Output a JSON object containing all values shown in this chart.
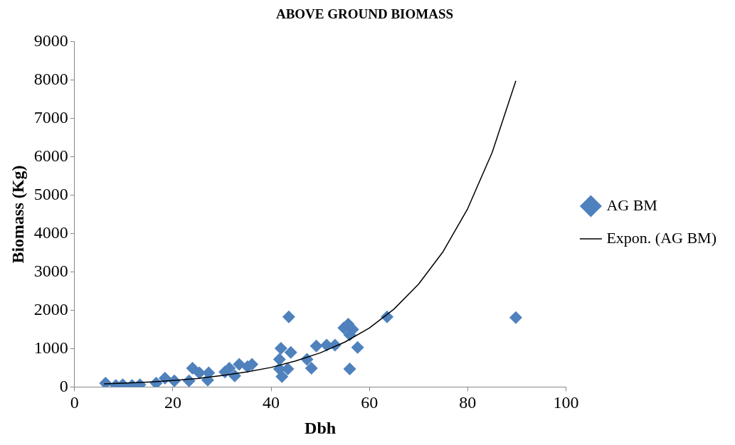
{
  "chart_data": {
    "type": "scatter",
    "title": "ABOVE GROUND BIOMASS",
    "xlabel": "Dbh",
    "ylabel": "Biomass (Kg)",
    "xlim": [
      0,
      100
    ],
    "xticks": [
      0,
      20,
      40,
      60,
      80,
      100
    ],
    "ylim": [
      0,
      9000
    ],
    "yticks": [
      0,
      1000,
      2000,
      3000,
      4000,
      5000,
      6000,
      7000,
      8000,
      9000
    ],
    "grid": false,
    "legend": "right",
    "marker": "diamond",
    "series": [
      {
        "name": "AG BM",
        "color": "#4f81bd",
        "x": [
          6.3,
          8.4,
          9.8,
          11.7,
          13.3,
          16.6,
          18.4,
          20.3,
          23.3,
          24,
          25.4,
          27.3,
          27.1,
          30.6,
          31.5,
          32.6,
          33.5,
          35.2,
          36.1,
          42,
          42.2,
          43.6,
          44,
          41.7,
          43.4,
          41.7,
          47.3,
          48.2,
          49.2,
          51.3,
          53,
          55.7,
          54.8,
          56.6,
          56,
          57.6,
          56,
          63.6,
          89.8
        ],
        "values": [
          100,
          40,
          60,
          40,
          60,
          100,
          230,
          160,
          160,
          490,
          370,
          370,
          180,
          390,
          490,
          290,
          590,
          530,
          590,
          1010,
          270,
          1830,
          900,
          720,
          470,
          470,
          720,
          490,
          1070,
          1090,
          1090,
          1640,
          1540,
          1500,
          1360,
          1030,
          470,
          1830,
          1810
        ]
      },
      {
        "name": "Expon. (AG BM)",
        "type": "line",
        "color": "#000000",
        "marker": "none",
        "x": [
          6,
          10,
          15,
          20,
          25,
          30,
          35,
          40,
          45,
          50,
          55,
          60,
          65,
          70,
          75,
          80,
          85,
          89.8
        ],
        "values": [
          80,
          100,
          130,
          170,
          220,
          300,
          390,
          510,
          680,
          890,
          1170,
          1540,
          2030,
          2680,
          3530,
          4650,
          6120,
          7980
        ]
      }
    ]
  }
}
